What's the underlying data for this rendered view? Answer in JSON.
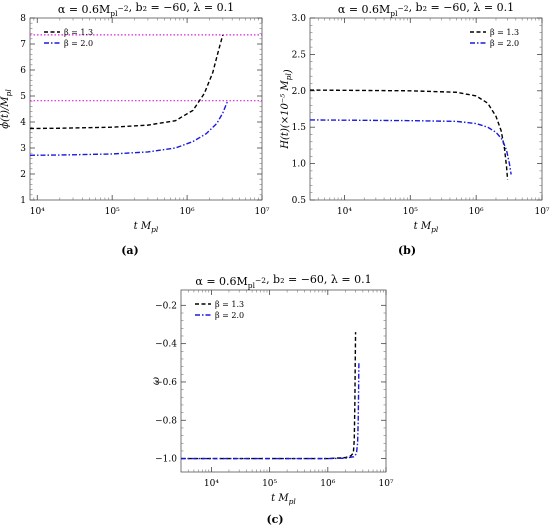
{
  "figure": {
    "panels": [
      "(a)",
      "(b)",
      "(c)"
    ]
  },
  "colors": {
    "beta_1_3": "#000000",
    "beta_2_0": "#1a1adf",
    "reference_lines": "#e020e0",
    "frame": "#555555"
  },
  "chart_data": [
    {
      "panel": "a",
      "type": "line",
      "title": "α = 0.6M_pl^−2, b₂ = −60, λ = 0.1",
      "xlabel": "t M_pl",
      "ylabel": "ϕ(t)/M_pl",
      "xscale": "log",
      "xlim": [
        8000,
        10000000
      ],
      "ylim": [
        1,
        8
      ],
      "xticks": [
        10000,
        100000,
        1000000,
        10000000
      ],
      "xtick_labels": [
        "10⁴",
        "10⁵",
        "10⁶",
        "10⁷"
      ],
      "yticks": [
        1,
        2,
        3,
        4,
        5,
        6,
        7,
        8
      ],
      "grid": false,
      "legend_position": "top-left",
      "series": [
        {
          "name": "β = 1.3",
          "style": "dashed",
          "x": [
            8000,
            20000,
            100000,
            300000,
            700000,
            1200000,
            1700000,
            2200000,
            2600000,
            2900000,
            3000000
          ],
          "y": [
            3.75,
            3.76,
            3.8,
            3.88,
            4.05,
            4.45,
            5.1,
            5.9,
            6.7,
            7.2,
            7.35
          ]
        },
        {
          "name": "β = 2.0",
          "style": "dashdot",
          "x": [
            8000,
            20000,
            100000,
            300000,
            700000,
            1200000,
            1800000,
            2500000,
            3000000,
            3300000,
            3500000
          ],
          "y": [
            2.72,
            2.73,
            2.77,
            2.85,
            3.0,
            3.25,
            3.55,
            3.95,
            4.35,
            4.65,
            4.82
          ]
        }
      ],
      "hlines": [
        7.35,
        4.82
      ]
    },
    {
      "panel": "b",
      "type": "line",
      "title": "α = 0.6M_pl^−2, b₂ = −60, λ = 0.1",
      "xlabel": "t M_pl",
      "ylabel": "H(t)(×10⁻⁵ M_pl)",
      "xscale": "log",
      "xlim": [
        3000,
        10000000
      ],
      "ylim": [
        0.5,
        3.0
      ],
      "xticks": [
        10000,
        100000,
        1000000,
        10000000
      ],
      "xtick_labels": [
        "10⁴",
        "10⁵",
        "10⁶",
        "10⁷"
      ],
      "yticks": [
        0.5,
        1.0,
        1.5,
        2.0,
        2.5,
        3.0
      ],
      "grid": false,
      "legend_position": "top-right",
      "series": [
        {
          "name": "β = 1.3",
          "style": "dashed",
          "x": [
            3000,
            100000,
            500000,
            1000000,
            1500000,
            2000000,
            2400000,
            2700000,
            2900000,
            3000000
          ],
          "y": [
            2.01,
            2.0,
            1.98,
            1.93,
            1.83,
            1.65,
            1.45,
            1.2,
            0.95,
            0.78
          ]
        },
        {
          "name": "β = 2.0",
          "style": "dashdot",
          "x": [
            3000,
            100000,
            500000,
            1000000,
            1500000,
            2000000,
            2500000,
            2900000,
            3200000,
            3400000
          ],
          "y": [
            1.6,
            1.59,
            1.58,
            1.55,
            1.5,
            1.43,
            1.33,
            1.18,
            1.0,
            0.85
          ]
        }
      ]
    },
    {
      "panel": "c",
      "type": "line",
      "title": "α = 0.6M_pl^−2, b₂ = −60, λ = 0.1",
      "xlabel": "t M_pl",
      "ylabel": "ω",
      "xscale": "log",
      "xlim": [
        3000,
        10000000
      ],
      "ylim": [
        -1.07,
        -0.12
      ],
      "xticks": [
        10000,
        100000,
        1000000,
        10000000
      ],
      "xtick_labels": [
        "10⁴",
        "10⁵",
        "10⁶",
        "10⁷"
      ],
      "yticks": [
        -1.0,
        -0.8,
        -0.6,
        -0.4,
        -0.2
      ],
      "ytick_labels": [
        "−1.0",
        "−0.8",
        "−0.6",
        "−0.4",
        "−0.2"
      ],
      "grid": false,
      "legend_position": "top-left",
      "series": [
        {
          "name": "β = 1.3",
          "style": "dashed",
          "x": [
            3000,
            100000,
            1000000,
            2000000,
            2500000,
            2750000,
            2850000,
            2920000,
            2960000,
            3000000
          ],
          "y": [
            -1.0,
            -1.0,
            -1.0,
            -0.995,
            -0.985,
            -0.97,
            -0.9,
            -0.7,
            -0.5,
            -0.34
          ]
        },
        {
          "name": "β = 2.0",
          "style": "dashdot",
          "x": [
            3000,
            100000,
            1000000,
            2000000,
            2800000,
            3100000,
            3250000,
            3330000,
            3380000,
            3420000
          ],
          "y": [
            -1.0,
            -1.0,
            -1.0,
            -0.998,
            -0.99,
            -0.975,
            -0.92,
            -0.8,
            -0.65,
            -0.5
          ]
        }
      ]
    }
  ]
}
